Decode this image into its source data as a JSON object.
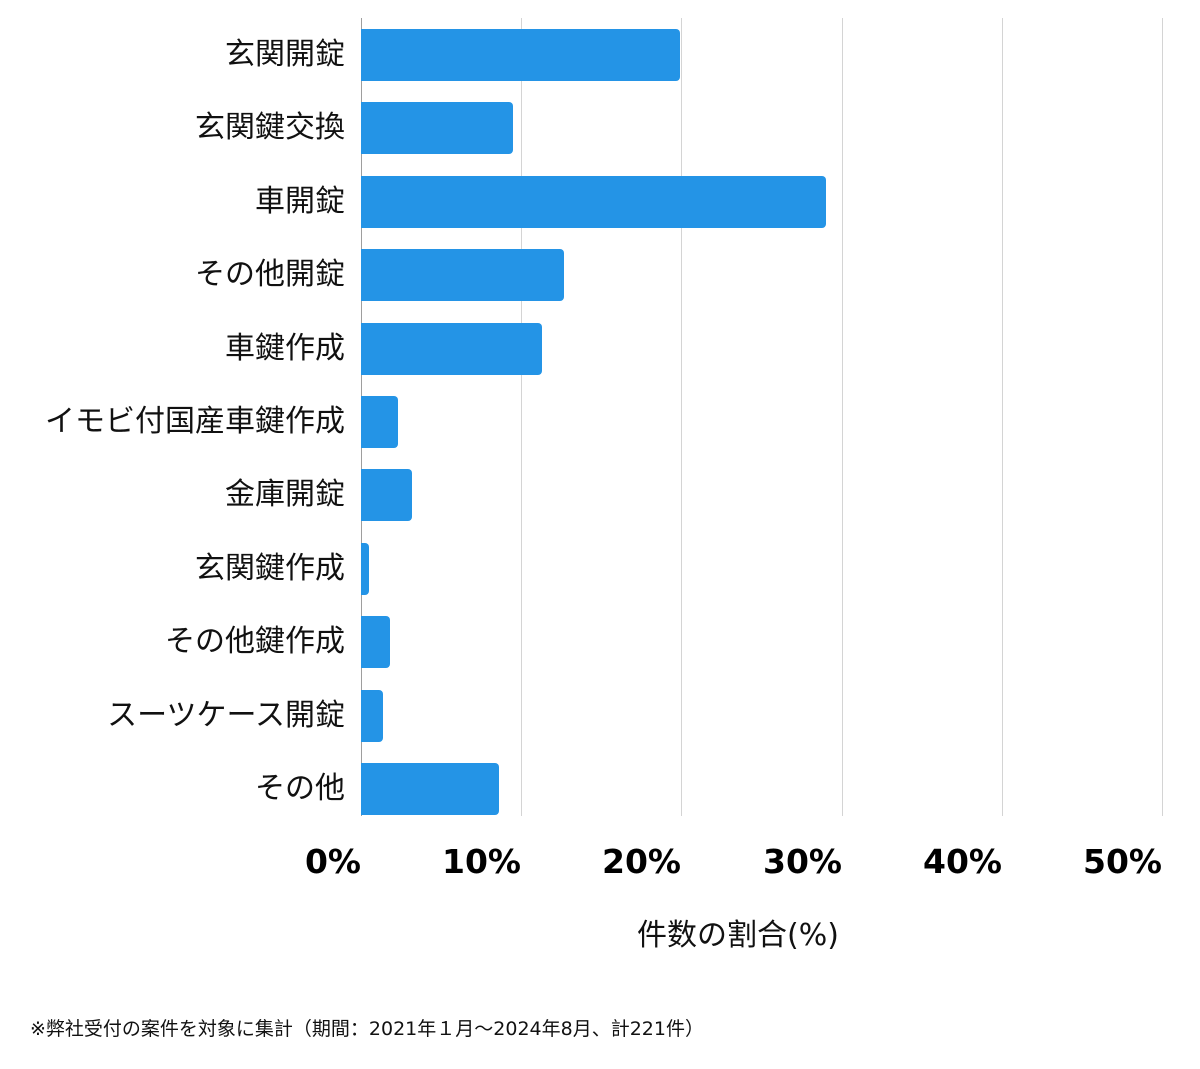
{
  "chart_data": {
    "type": "bar",
    "orientation": "horizontal",
    "title": "",
    "xlabel": "件数の割合(%)",
    "ylabel": "",
    "xlim": [
      0,
      50
    ],
    "x_ticks": [
      "0%",
      "10%",
      "20%",
      "30%",
      "40%",
      "50%"
    ],
    "grid": true,
    "legend": null,
    "categories": [
      "玄関開錠",
      "玄関鍵交換",
      "車開錠",
      "その他開錠",
      "車鍵作成",
      "イモビ付国産車鍵作成",
      "金庫開錠",
      "玄関鍵作成",
      "その他鍵作成",
      "スーツケース開錠",
      "その他"
    ],
    "values": [
      19.9,
      9.5,
      29.0,
      12.7,
      11.3,
      2.3,
      3.2,
      0.5,
      1.8,
      1.4,
      8.6
    ],
    "bar_color": "#2494e6",
    "annotation": "※弊社受付の案件を対象に集計（期間：2021年１月〜2024年8月、計221件）"
  },
  "axis": {
    "ticks": [
      "0%",
      "10%",
      "20%",
      "30%",
      "40%",
      "50%"
    ],
    "xlabel": "件数の割合(%)"
  },
  "rows": [
    {
      "label": "玄関開錠"
    },
    {
      "label": "玄関鍵交換"
    },
    {
      "label": "車開錠"
    },
    {
      "label": "その他開錠"
    },
    {
      "label": "車鍵作成"
    },
    {
      "label": "イモビ付国産車鍵作成"
    },
    {
      "label": "金庫開錠"
    },
    {
      "label": "玄関鍵作成"
    },
    {
      "label": "その他鍵作成"
    },
    {
      "label": "スーツケース開錠"
    },
    {
      "label": "その他"
    }
  ],
  "footnote": "※弊社受付の案件を対象に集計（期間：2021年１月〜2024年8月、計221件）"
}
